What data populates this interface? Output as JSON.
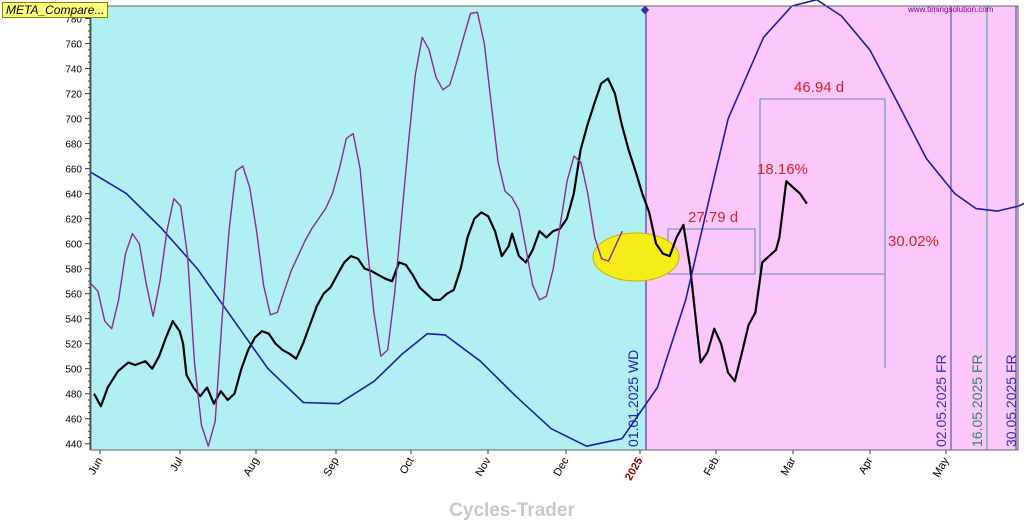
{
  "title_box": "META_Compare...",
  "watermark": "www.timingsolution.com",
  "footer": "Cycles-Trader",
  "colors": {
    "past_bg": "#b0f0f4",
    "future_bg": "#fcc8fc",
    "price": "#000000",
    "cycle_slow": "#1c1ca8",
    "cycle_fast": "#8c2a8c",
    "annotation": "#e02020",
    "highlight": "#f5ec18"
  },
  "chart_data": {
    "type": "line",
    "ylim": [
      435,
      790
    ],
    "yticks": [
      440,
      460,
      480,
      500,
      520,
      540,
      560,
      580,
      600,
      620,
      640,
      660,
      680,
      700,
      720,
      740,
      760,
      780
    ],
    "x_tick_labels": [
      "Jun",
      "Jul",
      "Aug",
      "Sep",
      "Oct",
      "Nov",
      "Dec",
      "2025",
      "Feb",
      "Mar",
      "Apr",
      "May"
    ],
    "boundary_label": "2025",
    "series": [
      {
        "points": [
          [
            0,
            480
          ],
          [
            2,
            470
          ],
          [
            4,
            485
          ],
          [
            7,
            498
          ],
          [
            10,
            505
          ],
          [
            12,
            503
          ],
          [
            15,
            506
          ],
          [
            17,
            500
          ],
          [
            19,
            510
          ],
          [
            21,
            525
          ],
          [
            23,
            538
          ],
          [
            25,
            530
          ],
          [
            26,
            520
          ],
          [
            27,
            495
          ],
          [
            29,
            485
          ],
          [
            31,
            478
          ],
          [
            33,
            485
          ],
          [
            35,
            472
          ],
          [
            37,
            482
          ],
          [
            39,
            475
          ],
          [
            41,
            480
          ],
          [
            43,
            500
          ],
          [
            45,
            515
          ],
          [
            47,
            525
          ],
          [
            49,
            530
          ],
          [
            51,
            528
          ],
          [
            53,
            520
          ],
          [
            55,
            515
          ],
          [
            57,
            512
          ],
          [
            59,
            508
          ],
          [
            61,
            520
          ],
          [
            63,
            535
          ],
          [
            65,
            550
          ],
          [
            67,
            560
          ],
          [
            69,
            565
          ],
          [
            71,
            575
          ],
          [
            73,
            585
          ],
          [
            75,
            590
          ],
          [
            77,
            588
          ],
          [
            79,
            580
          ],
          [
            81,
            578
          ],
          [
            83,
            575
          ],
          [
            85,
            572
          ],
          [
            87,
            570
          ],
          [
            89,
            585
          ],
          [
            91,
            583
          ],
          [
            93,
            575
          ],
          [
            95,
            565
          ],
          [
            97,
            560
          ],
          [
            99,
            555
          ],
          [
            101,
            555
          ],
          [
            103,
            560
          ],
          [
            105,
            563
          ],
          [
            107,
            580
          ],
          [
            109,
            605
          ],
          [
            111,
            620
          ],
          [
            113,
            625
          ],
          [
            115,
            622
          ],
          [
            117,
            610
          ],
          [
            119,
            590
          ],
          [
            121,
            598
          ],
          [
            122,
            608
          ],
          [
            124,
            590
          ],
          [
            126,
            585
          ],
          [
            128,
            595
          ],
          [
            130,
            610
          ],
          [
            132,
            605
          ],
          [
            134,
            610
          ],
          [
            136,
            612
          ],
          [
            138,
            620
          ],
          [
            140,
            640
          ],
          [
            142,
            675
          ],
          [
            144,
            695
          ],
          [
            146,
            712
          ],
          [
            148,
            728
          ],
          [
            150,
            732
          ],
          [
            152,
            720
          ],
          [
            154,
            695
          ],
          [
            156,
            675
          ],
          [
            158,
            658
          ],
          [
            160,
            640
          ],
          [
            162,
            625
          ],
          [
            164,
            600
          ],
          [
            166,
            592
          ],
          [
            168,
            590
          ],
          [
            170,
            605
          ],
          [
            172,
            615
          ],
          [
            174,
            580
          ],
          [
            176,
            530
          ],
          [
            177,
            505
          ],
          [
            179,
            513
          ],
          [
            181,
            532
          ],
          [
            183,
            520
          ],
          [
            185,
            497
          ],
          [
            187,
            490
          ],
          [
            189,
            512
          ],
          [
            191,
            535
          ],
          [
            193,
            545
          ],
          [
            195,
            585
          ],
          [
            197,
            590
          ],
          [
            199,
            595
          ],
          [
            200,
            605
          ],
          [
            202,
            650
          ],
          [
            204,
            645
          ],
          [
            206,
            640
          ],
          [
            208,
            632
          ]
        ]
      },
      {
        "points": [
          [
            0,
            657
          ],
          [
            10,
            640
          ],
          [
            20,
            612
          ],
          [
            30,
            580
          ],
          [
            40,
            540
          ],
          [
            50,
            500
          ],
          [
            60,
            473
          ],
          [
            70,
            472
          ],
          [
            80,
            490
          ],
          [
            88,
            512
          ],
          [
            95,
            528
          ],
          [
            100,
            527
          ],
          [
            110,
            506
          ],
          [
            120,
            478
          ],
          [
            130,
            452
          ],
          [
            140,
            438
          ],
          [
            150,
            444
          ],
          [
            160,
            485
          ],
          [
            168,
            555
          ],
          [
            175,
            640
          ],
          [
            180,
            700
          ],
          [
            190,
            765
          ],
          [
            198,
            790
          ],
          [
            205,
            795
          ],
          [
            212,
            782
          ],
          [
            220,
            755
          ],
          [
            228,
            712
          ],
          [
            236,
            668
          ],
          [
            244,
            640
          ],
          [
            250,
            628
          ],
          [
            256,
            626
          ],
          [
            262,
            630
          ],
          [
            268,
            638
          ],
          [
            274,
            648
          ],
          [
            282,
            668
          ],
          [
            290,
            682
          ]
        ]
      },
      {
        "points": [
          [
            0,
            568
          ],
          [
            2,
            562
          ],
          [
            4,
            538
          ],
          [
            6,
            532
          ],
          [
            8,
            555
          ],
          [
            10,
            592
          ],
          [
            12,
            608
          ],
          [
            14,
            600
          ],
          [
            16,
            568
          ],
          [
            18,
            542
          ],
          [
            20,
            570
          ],
          [
            22,
            610
          ],
          [
            24,
            636
          ],
          [
            26,
            630
          ],
          [
            28,
            590
          ],
          [
            30,
            505
          ],
          [
            32,
            455
          ],
          [
            34,
            438
          ],
          [
            36,
            458
          ],
          [
            38,
            540
          ],
          [
            40,
            610
          ],
          [
            42,
            658
          ],
          [
            44,
            662
          ],
          [
            46,
            645
          ],
          [
            48,
            610
          ],
          [
            50,
            567
          ],
          [
            52,
            543
          ],
          [
            54,
            545
          ],
          [
            56,
            562
          ],
          [
            58,
            578
          ],
          [
            60,
            590
          ],
          [
            62,
            602
          ],
          [
            64,
            612
          ],
          [
            66,
            620
          ],
          [
            68,
            628
          ],
          [
            70,
            640
          ],
          [
            72,
            660
          ],
          [
            74,
            684
          ],
          [
            76,
            688
          ],
          [
            78,
            660
          ],
          [
            80,
            600
          ],
          [
            82,
            545
          ],
          [
            84,
            510
          ],
          [
            86,
            515
          ],
          [
            88,
            560
          ],
          [
            90,
            620
          ],
          [
            92,
            680
          ],
          [
            94,
            735
          ],
          [
            96,
            765
          ],
          [
            98,
            755
          ],
          [
            100,
            733
          ],
          [
            102,
            723
          ],
          [
            104,
            727
          ],
          [
            106,
            745
          ],
          [
            108,
            765
          ],
          [
            110,
            784
          ],
          [
            112,
            785
          ],
          [
            114,
            760
          ],
          [
            116,
            712
          ],
          [
            118,
            665
          ],
          [
            120,
            642
          ],
          [
            122,
            637
          ],
          [
            124,
            627
          ],
          [
            126,
            597
          ],
          [
            128,
            567
          ],
          [
            130,
            555
          ],
          [
            132,
            558
          ],
          [
            134,
            580
          ],
          [
            136,
            615
          ],
          [
            138,
            650
          ],
          [
            140,
            670
          ],
          [
            142,
            665
          ],
          [
            144,
            640
          ],
          [
            146,
            605
          ],
          [
            148,
            588
          ],
          [
            150,
            586
          ],
          [
            152,
            598
          ],
          [
            154,
            610
          ]
        ]
      }
    ],
    "annotations": [
      "27.79 d",
      "46.94 d",
      "18.16%",
      "30.02%"
    ],
    "cycle_markers": [
      "01.01.2025 WD",
      "02.05.2025 FR",
      "16.05.2025 FR",
      "30.05.2025 FR"
    ]
  }
}
